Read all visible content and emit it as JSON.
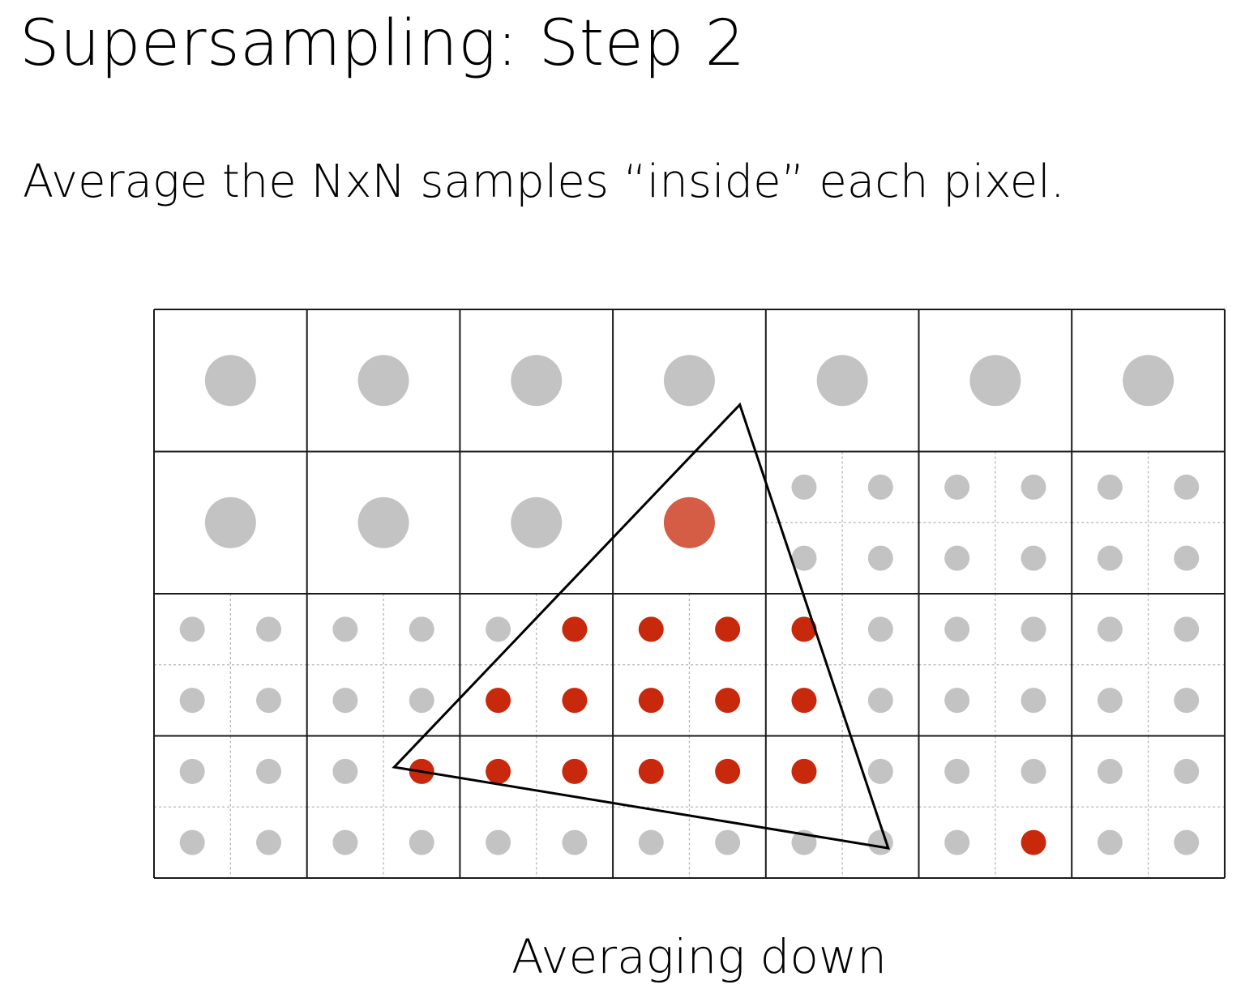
{
  "title": "Supersampling: Step 2",
  "subtitle": "Average the NxN samples “inside” each pixel.",
  "caption": "Averaging down",
  "colors": {
    "background": "#ffffff",
    "grid_line": "#1a1a1a",
    "subgrid_line": "#b5b5b5",
    "sample_outside": "#c3c3c3",
    "sample_inside": "#c8290c",
    "averaged_partial": "#d55c45",
    "triangle": "#000000"
  },
  "grid": {
    "cols": 7,
    "rows": 4,
    "samples_per_axis": 2,
    "cell_modes": [
      [
        "averaged",
        "averaged",
        "averaged",
        "averaged",
        "averaged",
        "averaged",
        "averaged"
      ],
      [
        "averaged",
        "averaged",
        "averaged",
        "averaged",
        "samples",
        "samples",
        "samples"
      ],
      [
        "samples",
        "samples",
        "samples",
        "samples",
        "samples",
        "samples",
        "samples"
      ],
      [
        "samples",
        "samples",
        "samples",
        "samples",
        "samples",
        "samples",
        "samples"
      ]
    ],
    "averaged_colors": [
      [
        "sample_outside",
        "sample_outside",
        "sample_outside",
        "sample_outside",
        "sample_outside",
        "sample_outside",
        "sample_outside"
      ],
      [
        "sample_outside",
        "sample_outside",
        "sample_outside",
        "averaged_partial",
        "sample_outside",
        "sample_outside",
        "sample_outside"
      ],
      [
        null,
        null,
        null,
        null,
        null,
        null,
        null
      ],
      [
        null,
        null,
        null,
        null,
        null,
        null,
        null
      ]
    ],
    "sample_rows_inside": [
      [],
      [],
      [],
      [],
      [
        5,
        6,
        7,
        8
      ],
      [
        4,
        5,
        6,
        7,
        8
      ],
      [
        3,
        4,
        5,
        6,
        7,
        8
      ],
      [
        11
      ]
    ]
  },
  "triangle": {
    "vertices": [
      [
        3.83,
        0.67
      ],
      [
        1.57,
        3.22
      ],
      [
        4.8,
        3.79
      ]
    ],
    "units": "pixel grid units"
  }
}
